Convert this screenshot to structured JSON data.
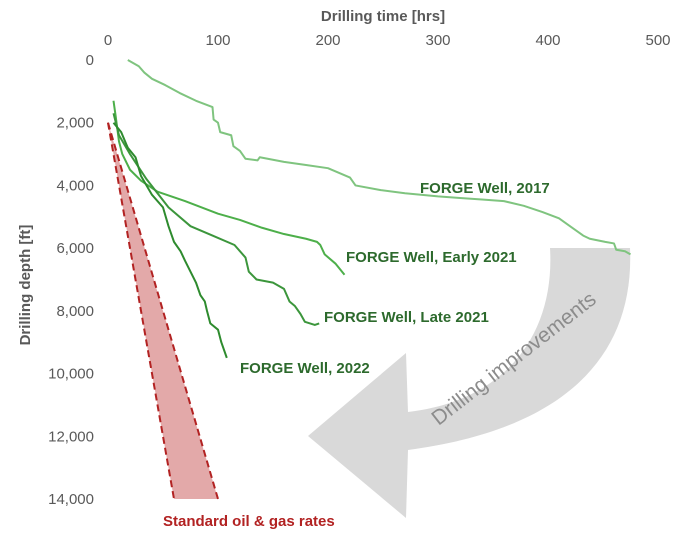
{
  "chart_data": {
    "type": "line",
    "xlabel": "Drilling time [hrs]",
    "ylabel": "Drilling depth [ft]",
    "xlim": [
      0,
      500
    ],
    "ylim": [
      0,
      14000
    ],
    "x_axis_position": "top",
    "y_inverted": true,
    "grid": false,
    "xticks": [
      "0",
      "100",
      "200",
      "300",
      "400",
      "500"
    ],
    "yticks": [
      "0",
      "2,000",
      "4,000",
      "6,000",
      "8,000",
      "10,000",
      "12,000",
      "14,000"
    ],
    "colors": {
      "well_2017": "#7fc47f",
      "well_early_2021": "#4daf4a",
      "well_late_2021": "#3c963c",
      "well_2022": "#2e8b2e",
      "label_green": "#2d6a2d",
      "standard_fill": "#e3a9a9",
      "standard_line": "#b22222",
      "arrow": "#d9d9d9",
      "arrow_text": "#8c8c8c"
    },
    "series": [
      {
        "name": "FORGE Well, 2017",
        "color_key": "well_2017",
        "points": [
          [
            18,
            0
          ],
          [
            28,
            200
          ],
          [
            33,
            400
          ],
          [
            40,
            600
          ],
          [
            52,
            800
          ],
          [
            65,
            1050
          ],
          [
            80,
            1300
          ],
          [
            95,
            1500
          ],
          [
            96,
            1900
          ],
          [
            100,
            2000
          ],
          [
            102,
            2300
          ],
          [
            112,
            2400
          ],
          [
            114,
            2750
          ],
          [
            120,
            2900
          ],
          [
            125,
            3150
          ],
          [
            136,
            3200
          ],
          [
            138,
            3100
          ],
          [
            160,
            3250
          ],
          [
            180,
            3350
          ],
          [
            200,
            3450
          ],
          [
            220,
            3750
          ],
          [
            225,
            4000
          ],
          [
            248,
            4150
          ],
          [
            270,
            4250
          ],
          [
            300,
            4350
          ],
          [
            320,
            4400
          ],
          [
            340,
            4450
          ],
          [
            360,
            4500
          ],
          [
            378,
            4650
          ],
          [
            395,
            4850
          ],
          [
            410,
            5050
          ],
          [
            420,
            5300
          ],
          [
            432,
            5600
          ],
          [
            438,
            5700
          ],
          [
            452,
            5800
          ],
          [
            460,
            5850
          ],
          [
            462,
            6050
          ],
          [
            470,
            6100
          ],
          [
            475,
            6200
          ]
        ]
      },
      {
        "name": "FORGE Well, Early 2021",
        "color_key": "well_early_2021",
        "points": [
          [
            5,
            1300
          ],
          [
            7,
            1800
          ],
          [
            10,
            2600
          ],
          [
            13,
            3000
          ],
          [
            20,
            3500
          ],
          [
            30,
            3850
          ],
          [
            45,
            4200
          ],
          [
            70,
            4500
          ],
          [
            100,
            4900
          ],
          [
            120,
            5100
          ],
          [
            140,
            5350
          ],
          [
            160,
            5550
          ],
          [
            180,
            5700
          ],
          [
            190,
            5800
          ],
          [
            193,
            5900
          ],
          [
            197,
            6200
          ],
          [
            207,
            6500
          ],
          [
            215,
            6850
          ]
        ]
      },
      {
        "name": "FORGE Well, Late 2021",
        "color_key": "well_late_2021",
        "points": [
          [
            5,
            1700
          ],
          [
            10,
            2400
          ],
          [
            20,
            3000
          ],
          [
            35,
            3800
          ],
          [
            55,
            4700
          ],
          [
            75,
            5300
          ],
          [
            95,
            5600
          ],
          [
            115,
            5900
          ],
          [
            125,
            6300
          ],
          [
            128,
            6750
          ],
          [
            135,
            7000
          ],
          [
            150,
            7100
          ],
          [
            160,
            7300
          ],
          [
            165,
            7700
          ],
          [
            170,
            7850
          ],
          [
            175,
            8100
          ],
          [
            179,
            8350
          ],
          [
            188,
            8450
          ],
          [
            192,
            8400
          ]
        ]
      },
      {
        "name": "FORGE Well, 2022",
        "color_key": "well_2022",
        "points": [
          [
            5,
            2000
          ],
          [
            12,
            2300
          ],
          [
            18,
            2800
          ],
          [
            25,
            3100
          ],
          [
            30,
            3700
          ],
          [
            40,
            4300
          ],
          [
            50,
            4700
          ],
          [
            55,
            5300
          ],
          [
            60,
            5800
          ],
          [
            66,
            6100
          ],
          [
            70,
            6400
          ],
          [
            75,
            6750
          ],
          [
            80,
            7100
          ],
          [
            84,
            7500
          ],
          [
            88,
            7700
          ],
          [
            90,
            8000
          ],
          [
            93,
            8400
          ],
          [
            100,
            8600
          ],
          [
            103,
            9000
          ],
          [
            108,
            9500
          ]
        ]
      }
    ],
    "standard_range": {
      "name": "Standard oil & gas rates",
      "polygon": [
        [
          0,
          2000
        ],
        [
          60,
          14000
        ],
        [
          100,
          14000
        ]
      ]
    },
    "annotations": [
      {
        "text": "FORGE Well, 2017",
        "series": 0
      },
      {
        "text": "FORGE Well, Early 2021",
        "series": 1
      },
      {
        "text": "FORGE Well, Late 2021",
        "series": 2
      },
      {
        "text": "FORGE Well, 2022",
        "series": 3
      },
      {
        "text": "Standard oil & gas rates"
      },
      {
        "text": "Drilling improvements"
      }
    ]
  },
  "labels": {
    "well_2017": "FORGE Well, 2017",
    "well_early_2021": "FORGE Well, Early 2021",
    "well_late_2021": "FORGE Well, Late 2021",
    "well_2022": "FORGE Well, 2022",
    "standard": "Standard oil & gas rates",
    "improvements": "Drilling improvements"
  }
}
